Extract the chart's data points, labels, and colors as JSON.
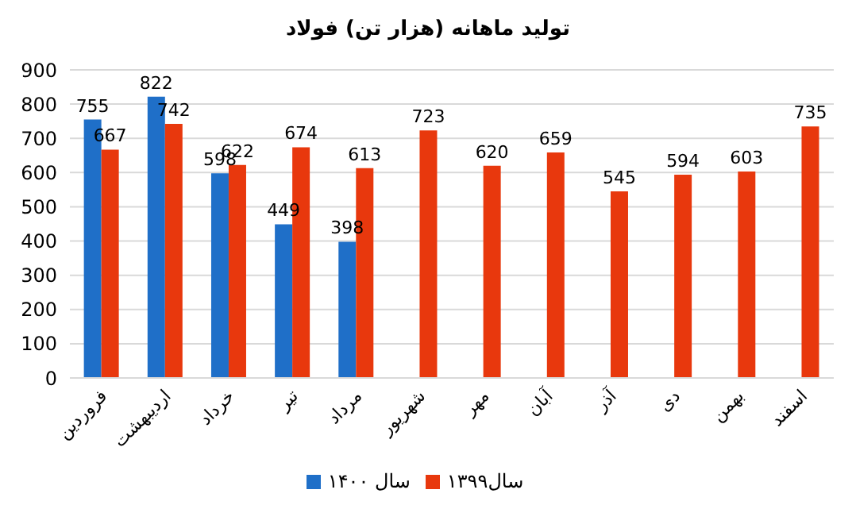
{
  "chart_data": {
    "type": "bar",
    "title": "تولید ماهانه (هزار تن) فولاد",
    "categories": [
      "فروردین",
      "اردیبهشت",
      "خرداد",
      "تیر",
      "مرداد",
      "شهریور",
      "مهر",
      "آبان",
      "آذر",
      "دی",
      "بهمن",
      "اسفند"
    ],
    "series": [
      {
        "name": "سال ۱۴۰۰",
        "color": "#1f6fc8",
        "values": [
          755,
          822,
          598,
          449,
          398,
          null,
          null,
          null,
          null,
          null,
          null,
          null
        ]
      },
      {
        "name": "سال۱۳۹۹",
        "color": "#e8380d",
        "values": [
          667,
          742,
          622,
          674,
          613,
          723,
          620,
          659,
          545,
          594,
          603,
          735
        ]
      }
    ],
    "ylim": [
      0,
      900
    ],
    "yticks": [
      0,
      100,
      200,
      300,
      400,
      500,
      600,
      700,
      800,
      900
    ],
    "grid": "y",
    "legend": "bottom",
    "data_labels": true
  }
}
